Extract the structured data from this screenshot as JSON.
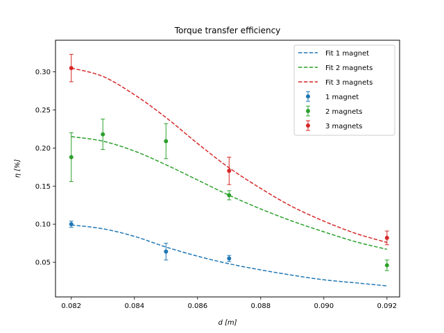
{
  "chart_data": {
    "type": "scatter",
    "title": "Torque transfer efficiency",
    "xlabel": "d [m]",
    "ylabel": "η [%]",
    "xlim": [
      0.0815,
      0.0924
    ],
    "ylim": [
      0.0045,
      0.3415
    ],
    "xticks": [
      "0.082",
      "0.084",
      "0.086",
      "0.088",
      "0.090",
      "0.092"
    ],
    "xtick_values": [
      0.082,
      0.084,
      0.086,
      0.088,
      0.09,
      0.092
    ],
    "yticks": [
      "0.05",
      "0.10",
      "0.15",
      "0.20",
      "0.25",
      "0.30"
    ],
    "ytick_values": [
      0.05,
      0.1,
      0.15,
      0.2,
      0.25,
      0.3
    ],
    "grid": false,
    "legend_position": "upper right",
    "series": [
      {
        "name": "1 magnet",
        "color": "#1f77b4",
        "x": [
          0.082,
          0.085,
          0.087
        ],
        "y": [
          0.1,
          0.064,
          0.055
        ],
        "yerr": [
          0.004,
          0.011,
          0.004
        ],
        "fit_name": "Fit 1 magnet",
        "fit_x": [
          0.082,
          0.083,
          0.084,
          0.085,
          0.086,
          0.087,
          0.088,
          0.089,
          0.09,
          0.091,
          0.092
        ],
        "fit_y": [
          0.099,
          0.094,
          0.084,
          0.07,
          0.058,
          0.048,
          0.04,
          0.033,
          0.027,
          0.023,
          0.019
        ]
      },
      {
        "name": "2 magnets",
        "color": "#2ca02c",
        "x": [
          0.082,
          0.083,
          0.085,
          0.087,
          0.092
        ],
        "y": [
          0.188,
          0.218,
          0.209,
          0.138,
          0.046
        ],
        "yerr": [
          0.032,
          0.02,
          0.023,
          0.006,
          0.007
        ],
        "fit_name": "Fit 2 magnets",
        "fit_x": [
          0.082,
          0.083,
          0.084,
          0.085,
          0.086,
          0.087,
          0.088,
          0.089,
          0.09,
          0.091,
          0.092
        ],
        "fit_y": [
          0.215,
          0.209,
          0.196,
          0.178,
          0.158,
          0.138,
          0.12,
          0.104,
          0.09,
          0.077,
          0.067
        ]
      },
      {
        "name": "3 magnets",
        "color": "#d62728",
        "x": [
          0.082,
          0.087,
          0.092
        ],
        "y": [
          0.305,
          0.17,
          0.082
        ],
        "yerr": [
          0.018,
          0.018,
          0.009
        ],
        "fit_name": "Fit 3 magnets",
        "fit_x": [
          0.082,
          0.083,
          0.084,
          0.085,
          0.086,
          0.087,
          0.088,
          0.089,
          0.09,
          0.091,
          0.092
        ],
        "fit_y": [
          0.305,
          0.294,
          0.27,
          0.24,
          0.206,
          0.174,
          0.147,
          0.123,
          0.104,
          0.088,
          0.076
        ]
      }
    ]
  }
}
